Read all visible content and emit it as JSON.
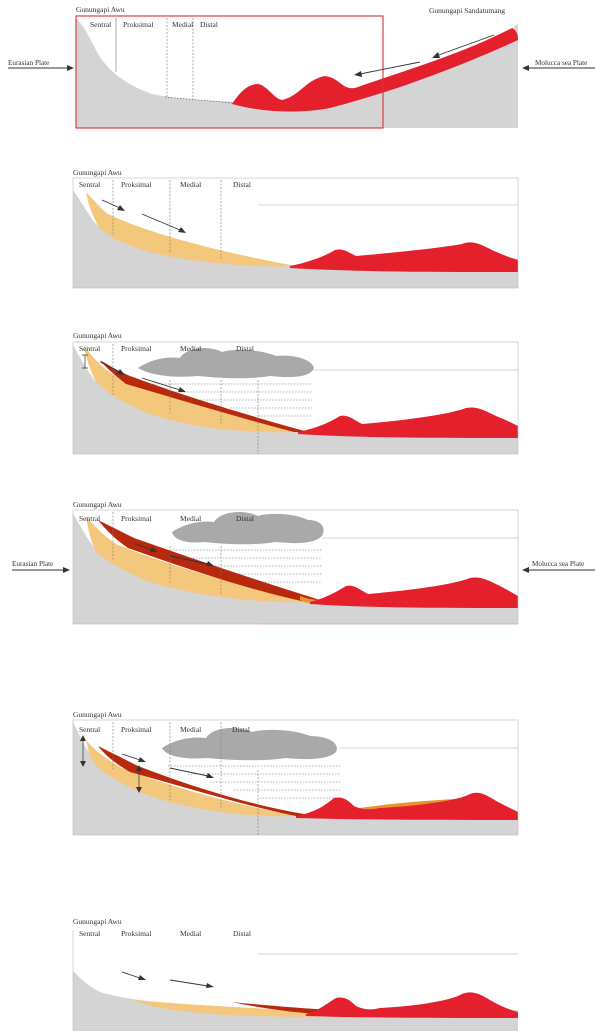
{
  "colors": {
    "ground": "#d4d4d4",
    "magma": "#e3202b",
    "tephra_light": "#f4c87c",
    "tephra_dark": "#b8280c",
    "tephra_mid": "#e8922a",
    "ash_cloud": "#a9a9a9",
    "frame_highlight": "#d2323c",
    "arrow": "#333333"
  },
  "zones": [
    "Sentral",
    "Proksimal",
    "Medial",
    "Distal"
  ],
  "panels": [
    {
      "volcano": "Gunungapi Awu",
      "right_volcano": "Gunungapi Sandatumang",
      "left_plate": "Eurasian Plate",
      "right_plate": "Molucca sea Plate"
    },
    {
      "volcano": "Gunungapi Awu"
    },
    {
      "volcano": "Gunungapi Awu"
    },
    {
      "volcano": "Gunungapi Awu",
      "left_plate": "Eurasian Plate",
      "right_plate": "Molucca sea Plate"
    },
    {
      "volcano": "Gunungapi Awu"
    },
    {
      "volcano": "Gunungapi Awu"
    }
  ]
}
